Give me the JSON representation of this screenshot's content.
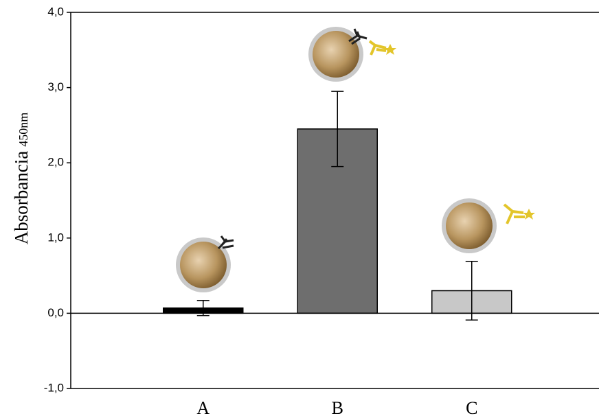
{
  "chart_data": {
    "type": "bar",
    "ylabel": "Absorbancia",
    "ylabel_subscript": "450nm",
    "categories": [
      "A",
      "B",
      "C"
    ],
    "values": [
      0.07,
      2.45,
      0.3
    ],
    "errors": [
      0.1,
      0.5,
      0.39
    ],
    "colors": [
      "#000000",
      "#6e6e6e",
      "#c8c8c8"
    ],
    "ylim": [
      -1,
      4
    ],
    "yticks": [
      {
        "value": -1,
        "label": "-1,0"
      },
      {
        "value": 0,
        "label": "0,0"
      },
      {
        "value": 1,
        "label": "1,0"
      },
      {
        "value": 2,
        "label": "2,0"
      },
      {
        "value": 3,
        "label": "3,0"
      },
      {
        "value": 4,
        "label": "4,0"
      }
    ]
  }
}
